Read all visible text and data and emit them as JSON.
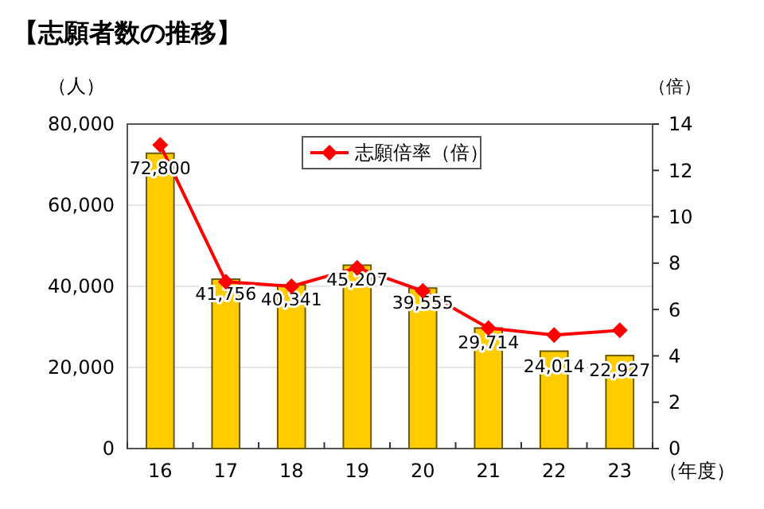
{
  "chart_data": {
    "type": "bar",
    "title": "【志願者数の推移】",
    "ylabel": "（人）",
    "y2label": "（倍）",
    "xlabel": "（年度）",
    "categories": [
      "16",
      "17",
      "18",
      "19",
      "20",
      "21",
      "22",
      "23"
    ],
    "series": [
      {
        "color": "#ffcc00",
        "values": [
          72800,
          41756,
          40341,
          45207,
          39555,
          29714,
          24014,
          22927
        ],
        "value_labels": [
          "72,800",
          "41,756",
          "40,341",
          "45,207",
          "39,555",
          "29,714",
          "24,014",
          "22,927"
        ]
      },
      {
        "type": "line",
        "name": "志願倍率（倍）",
        "color": "#ff0000",
        "axis": "y2",
        "values": [
          13.1,
          7.2,
          7.0,
          7.8,
          6.8,
          5.2,
          4.9,
          5.1
        ]
      }
    ],
    "ylim": [
      0,
      80000
    ],
    "yticks": [
      {
        "value": 0,
        "label": "0"
      },
      {
        "value": 20000,
        "label": "20,000"
      },
      {
        "value": 40000,
        "label": "40,000"
      },
      {
        "value": 60000,
        "label": "60,000"
      },
      {
        "value": 80000,
        "label": "80,000"
      }
    ],
    "y2lim": [
      0,
      14
    ],
    "y2ticks": [
      0,
      2,
      4,
      6,
      8,
      10,
      12,
      14
    ],
    "grid": "y",
    "legend": "top",
    "marker": "diamond",
    "line_style": "solid"
  }
}
